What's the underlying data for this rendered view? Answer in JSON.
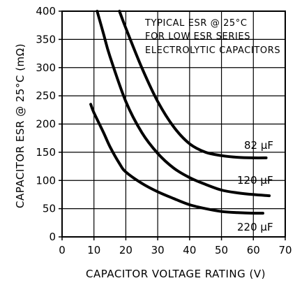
{
  "chart_data": {
    "type": "line",
    "title": "",
    "annotation": [
      "TYPICAL ESR @ 25°C",
      "FOR LOW ESR SERIES",
      "ELECTROLYTIC CAPACITORS"
    ],
    "xlabel": "CAPACITOR VOLTAGE RATING (V)",
    "ylabel": "CAPACITOR ESR @ 25°C (mΩ)",
    "xlim": [
      0,
      70
    ],
    "ylim": [
      0,
      400
    ],
    "x_ticks": [
      0,
      10,
      20,
      30,
      40,
      50,
      60,
      70
    ],
    "y_ticks": [
      0,
      50,
      100,
      150,
      200,
      250,
      300,
      350,
      400
    ],
    "grid": true,
    "series": [
      {
        "name": "82 µF",
        "points": [
          [
            18,
            400
          ],
          [
            20,
            370
          ],
          [
            25,
            300
          ],
          [
            30,
            240
          ],
          [
            35,
            195
          ],
          [
            40,
            165
          ],
          [
            45,
            150
          ],
          [
            50,
            144
          ],
          [
            55,
            141
          ],
          [
            60,
            140
          ],
          [
            64,
            140
          ]
        ]
      },
      {
        "name": "120 µF",
        "points": [
          [
            11,
            400
          ],
          [
            13,
            360
          ],
          [
            15,
            320
          ],
          [
            20,
            240
          ],
          [
            25,
            185
          ],
          [
            30,
            148
          ],
          [
            35,
            122
          ],
          [
            40,
            105
          ],
          [
            45,
            93
          ],
          [
            50,
            83
          ],
          [
            55,
            78
          ],
          [
            60,
            75
          ],
          [
            65,
            73
          ]
        ]
      },
      {
        "name": "220 µF",
        "points": [
          [
            9,
            235
          ],
          [
            10,
            220
          ],
          [
            13,
            185
          ],
          [
            15,
            160
          ],
          [
            18,
            130
          ],
          [
            20,
            115
          ],
          [
            25,
            95
          ],
          [
            30,
            80
          ],
          [
            35,
            68
          ],
          [
            40,
            57
          ],
          [
            45,
            50
          ],
          [
            50,
            45
          ],
          [
            55,
            43
          ],
          [
            60,
            42
          ],
          [
            63,
            42
          ]
        ]
      }
    ]
  }
}
